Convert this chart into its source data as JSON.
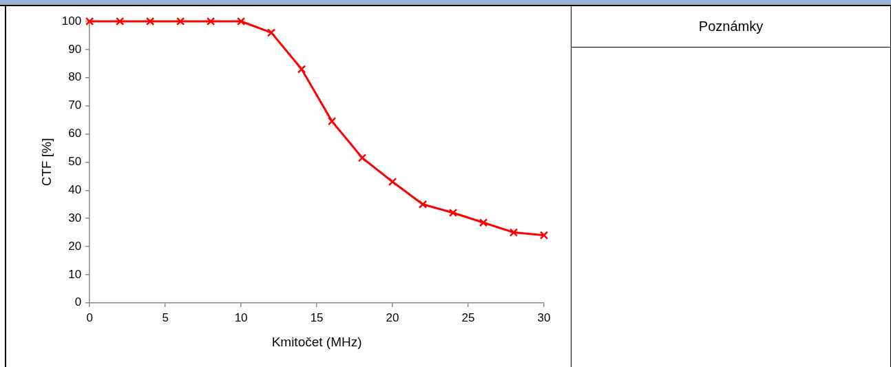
{
  "chart_data": {
    "type": "line",
    "xlabel": "Kmitočet (MHz)",
    "ylabel": "CTF [%]",
    "annotations": [
      "Poznámky"
    ],
    "x": [
      0,
      2,
      4,
      6,
      8,
      10,
      12,
      14,
      16,
      18,
      20,
      22,
      24,
      26,
      28,
      30
    ],
    "series": [
      {
        "color": "#ff0000",
        "values": [
          100,
          100,
          100,
          100,
          100,
          100,
          96,
          83,
          64.5,
          51.5,
          43,
          35,
          32,
          28.5,
          25,
          24
        ]
      }
    ],
    "xlim": [
      0,
      30
    ],
    "xticks": [
      0,
      5,
      10,
      15,
      20,
      25,
      30
    ],
    "ylim": [
      0,
      100
    ],
    "yticks": [
      0,
      10,
      20,
      30,
      40,
      50,
      60,
      70,
      80,
      90,
      100
    ],
    "grid": false,
    "legend": false,
    "marker": "cross",
    "line_style": "solid"
  }
}
